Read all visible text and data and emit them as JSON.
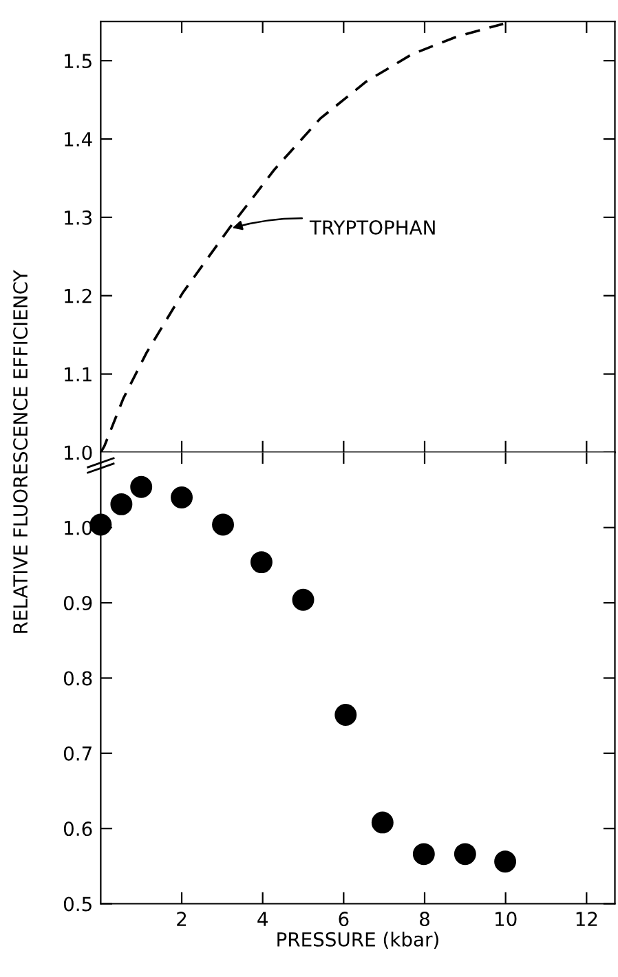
{
  "chart_data": [
    {
      "type": "line",
      "line_style": "dashed",
      "marker": "none",
      "tick_labels": "y",
      "annotations": [
        {
          "text": "TRYPTOPHAN",
          "x": 3.16,
          "y": 1.285
        }
      ],
      "series": [
        {
          "color": "#000000",
          "x": [
            0,
            0.09,
            0.56,
            1.13,
            2.03,
            3.16,
            4.29,
            5.42,
            6.55,
            7.68,
            8.81,
            9.94
          ],
          "values": [
            1.0,
            1.008,
            1.069,
            1.127,
            1.204,
            1.285,
            1.361,
            1.426,
            1.473,
            1.508,
            1.531,
            1.547
          ]
        }
      ],
      "xlim": [
        0,
        12.7
      ],
      "xticks": [
        {
          "value": 2,
          "label": null
        },
        {
          "value": 4,
          "label": null
        },
        {
          "value": 6,
          "label": null
        },
        {
          "value": 8,
          "label": null
        },
        {
          "value": 10,
          "label": null
        },
        {
          "value": 12,
          "label": null
        }
      ],
      "ylim": [
        1.0,
        1.55
      ],
      "yticks": [
        {
          "value": 1.0,
          "label": "1.0"
        },
        {
          "value": 1.1,
          "label": "1.1"
        },
        {
          "value": 1.2,
          "label": "1.2"
        },
        {
          "value": 1.3,
          "label": "1.3"
        },
        {
          "value": 1.4,
          "label": "1.4"
        },
        {
          "value": 1.5,
          "label": "1.5"
        }
      ],
      "grid": false,
      "legend": false
    },
    {
      "type": "scatter",
      "marker": "circle",
      "xlabel": "PRESSURE (kbar)",
      "ylabel": "RELATIVE FLUORESCENCE EFFICIENCY",
      "series": [
        {
          "color": "#000000",
          "x": [
            0,
            0.51,
            1.0,
            2,
            3.02,
            3.97,
            5,
            6.05,
            6.96,
            7.98,
            9.0,
            9.99
          ],
          "values": [
            1.004,
            1.031,
            1.054,
            1.04,
            1.004,
            0.954,
            0.904,
            0.751,
            0.608,
            0.566,
            0.566,
            0.556
          ]
        }
      ],
      "xlim": [
        0,
        12.7
      ],
      "xticks": [
        2,
        4,
        6,
        8,
        10,
        12
      ],
      "ylim": [
        0.5,
        1.1
      ],
      "yticks": [
        {
          "value": 0.5,
          "label": "0.5"
        },
        {
          "value": 0.6,
          "label": "0.6"
        },
        {
          "value": 0.7,
          "label": "0.7"
        },
        {
          "value": 0.8,
          "label": "0.8"
        },
        {
          "value": 0.9,
          "label": "0.9"
        },
        {
          "value": 1.0,
          "label": "1.0"
        }
      ],
      "grid": false,
      "legend": false
    }
  ]
}
